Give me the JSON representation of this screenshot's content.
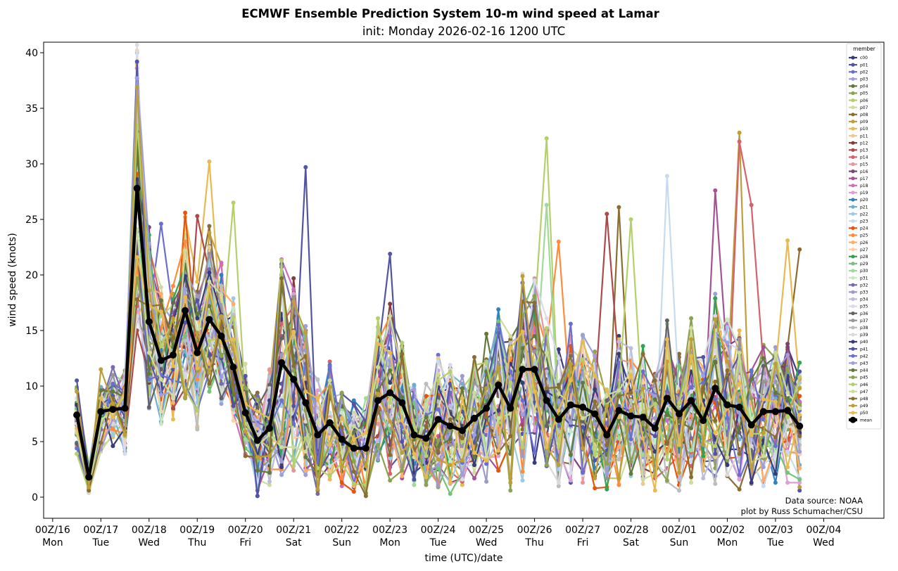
{
  "chart_data": {
    "type": "line",
    "title": "ECMWF Ensemble Prediction System 10-m wind speed at Lamar",
    "subtitle": "init: Monday 2026-02-16 1200 UTC",
    "xlabel": "time (UTC)/date",
    "ylabel": "wind speed (knots)",
    "ylim": [
      -1.9,
      40.95
    ],
    "xlim_hours_from_00Z16": [
      -4.5,
      414
    ],
    "grid": false,
    "legend_title": "member",
    "legend_position": "top-right",
    "credit_lines": [
      "Data source: NOAA",
      "plot by Russ Schumacher/CSU"
    ],
    "y_ticks": [
      0,
      5,
      10,
      15,
      20,
      25,
      30,
      35,
      40
    ],
    "x_ticks": [
      {
        "hours": 0,
        "line1": "00Z/16",
        "line2": "Mon"
      },
      {
        "hours": 24,
        "line1": "00Z/17",
        "line2": "Tue"
      },
      {
        "hours": 48,
        "line1": "00Z/18",
        "line2": "Wed"
      },
      {
        "hours": 72,
        "line1": "00Z/19",
        "line2": "Thu"
      },
      {
        "hours": 96,
        "line1": "00Z/20",
        "line2": "Fri"
      },
      {
        "hours": 120,
        "line1": "00Z/21",
        "line2": "Sat"
      },
      {
        "hours": 144,
        "line1": "00Z/22",
        "line2": "Sun"
      },
      {
        "hours": 168,
        "line1": "00Z/23",
        "line2": "Mon"
      },
      {
        "hours": 192,
        "line1": "00Z/24",
        "line2": "Tue"
      },
      {
        "hours": 216,
        "line1": "00Z/25",
        "line2": "Wed"
      },
      {
        "hours": 240,
        "line1": "00Z/26",
        "line2": "Thu"
      },
      {
        "hours": 264,
        "line1": "00Z/27",
        "line2": "Fri"
      },
      {
        "hours": 288,
        "line1": "00Z/28",
        "line2": "Sat"
      },
      {
        "hours": 312,
        "line1": "00Z/01",
        "line2": "Sun"
      },
      {
        "hours": 336,
        "line1": "00Z/02",
        "line2": "Mon"
      },
      {
        "hours": 360,
        "line1": "00Z/03",
        "line2": "Tue"
      },
      {
        "hours": 384,
        "line1": "00Z/04",
        "line2": "Wed"
      }
    ],
    "x_start_hours": 12,
    "x_step_hours": 6,
    "mean": {
      "name": "mean",
      "color": "#000000",
      "values": [
        7.4,
        1.8,
        7.7,
        7.9,
        8.0,
        27.8,
        15.8,
        12.3,
        12.8,
        16.8,
        13.0,
        16.0,
        14.5,
        11.7,
        7.6,
        5.1,
        6.2,
        12.1,
        10.6,
        8.5,
        5.6,
        6.7,
        5.2,
        4.4,
        4.4,
        8.7,
        9.4,
        8.5,
        5.6,
        5.3,
        7.0,
        6.4,
        6.0,
        7.1,
        8.0,
        10.1,
        8.0,
        11.5,
        11.5,
        8.7,
        7.0,
        8.3,
        8.1,
        7.5,
        5.6,
        7.8,
        7.3,
        7.2,
        6.2,
        8.9,
        7.5,
        8.7,
        6.9,
        9.8,
        8.3,
        8.1,
        6.5,
        7.7,
        7.7,
        7.8,
        6.4
      ]
    },
    "members": [
      {
        "name": "c00",
        "color": "#393b79"
      },
      {
        "name": "p01",
        "color": "#5254a3"
      },
      {
        "name": "p02",
        "color": "#6b6ecf"
      },
      {
        "name": "p03",
        "color": "#9c9ede"
      },
      {
        "name": "p04",
        "color": "#637939"
      },
      {
        "name": "p05",
        "color": "#8ca252"
      },
      {
        "name": "p06",
        "color": "#b5cf6b"
      },
      {
        "name": "p07",
        "color": "#cedb9c"
      },
      {
        "name": "p08",
        "color": "#8c6d31"
      },
      {
        "name": "p09",
        "color": "#bd9e39"
      },
      {
        "name": "p10",
        "color": "#e7ba52"
      },
      {
        "name": "p11",
        "color": "#e7cb94"
      },
      {
        "name": "p12",
        "color": "#843c39"
      },
      {
        "name": "p13",
        "color": "#ad494a"
      },
      {
        "name": "p14",
        "color": "#d6616b"
      },
      {
        "name": "p15",
        "color": "#e7969c"
      },
      {
        "name": "p16",
        "color": "#7b4173"
      },
      {
        "name": "p17",
        "color": "#a55194"
      },
      {
        "name": "p18",
        "color": "#ce6dbd"
      },
      {
        "name": "p19",
        "color": "#de9ed6"
      },
      {
        "name": "p20",
        "color": "#3182bd"
      },
      {
        "name": "p21",
        "color": "#6baed6"
      },
      {
        "name": "p22",
        "color": "#9ecae1"
      },
      {
        "name": "p23",
        "color": "#c6dbef"
      },
      {
        "name": "p24",
        "color": "#e6550d"
      },
      {
        "name": "p25",
        "color": "#fd8d3c"
      },
      {
        "name": "p26",
        "color": "#fdae6b"
      },
      {
        "name": "p27",
        "color": "#fdd0a2"
      },
      {
        "name": "p28",
        "color": "#31a354"
      },
      {
        "name": "p29",
        "color": "#74c476"
      },
      {
        "name": "p30",
        "color": "#a1d99b"
      },
      {
        "name": "p31",
        "color": "#c7e9c0"
      },
      {
        "name": "p32",
        "color": "#756bb1"
      },
      {
        "name": "p33",
        "color": "#9e9ac8"
      },
      {
        "name": "p34",
        "color": "#bcbddc"
      },
      {
        "name": "p35",
        "color": "#dadaeb"
      },
      {
        "name": "p36",
        "color": "#636363"
      },
      {
        "name": "p37",
        "color": "#969696"
      },
      {
        "name": "p38",
        "color": "#bdbdbd"
      },
      {
        "name": "p39",
        "color": "#d9d9d9"
      },
      {
        "name": "p40",
        "color": "#393b79"
      },
      {
        "name": "p41",
        "color": "#5254a3"
      },
      {
        "name": "p42",
        "color": "#6b6ecf"
      },
      {
        "name": "p43",
        "color": "#9c9ede"
      },
      {
        "name": "p44",
        "color": "#637939"
      },
      {
        "name": "p45",
        "color": "#8ca252"
      },
      {
        "name": "p46",
        "color": "#b5cf6b"
      },
      {
        "name": "p47",
        "color": "#cedb9c"
      },
      {
        "name": "p48",
        "color": "#8c6d31"
      },
      {
        "name": "p49",
        "color": "#bd9e39"
      },
      {
        "name": "p50",
        "color": "#e7ba52"
      }
    ],
    "member_spread_note": "individual member traces scatter around the mean; notable peaks listed",
    "notable_member_peaks": [
      {
        "member": "p10",
        "index": 5,
        "value": 39.0
      },
      {
        "member": "p04",
        "index": 5,
        "value": 31.0
      },
      {
        "member": "p30",
        "index": 5,
        "value": 36.0
      },
      {
        "member": "p10",
        "index": 11,
        "value": 30.2
      },
      {
        "member": "p06",
        "index": 13,
        "value": 26.5
      },
      {
        "member": "p02",
        "index": 7,
        "value": 24.6
      },
      {
        "member": "p13",
        "index": 10,
        "value": 25.3
      },
      {
        "member": "p10",
        "index": 9,
        "value": 25.2
      },
      {
        "member": "p41",
        "index": 19,
        "value": 29.7
      },
      {
        "member": "p41",
        "index": 26,
        "value": 21.9
      },
      {
        "member": "p06",
        "index": 39,
        "value": 32.3
      },
      {
        "member": "p30",
        "index": 39,
        "value": 26.3
      },
      {
        "member": "p25",
        "index": 40,
        "value": 23.0
      },
      {
        "member": "p13",
        "index": 44,
        "value": 25.5
      },
      {
        "member": "p08",
        "index": 45,
        "value": 26.1
      },
      {
        "member": "p23",
        "index": 49,
        "value": 28.9
      },
      {
        "member": "p17",
        "index": 53,
        "value": 27.6
      },
      {
        "member": "p09",
        "index": 55,
        "value": 32.8
      },
      {
        "member": "p14",
        "index": 55,
        "value": 32.0
      },
      {
        "member": "p14",
        "index": 56,
        "value": 26.3
      },
      {
        "member": "p46",
        "index": 46,
        "value": 25.0
      },
      {
        "member": "p10",
        "index": 59,
        "value": 23.1
      },
      {
        "member": "p08",
        "index": 60,
        "value": 22.3
      }
    ]
  }
}
